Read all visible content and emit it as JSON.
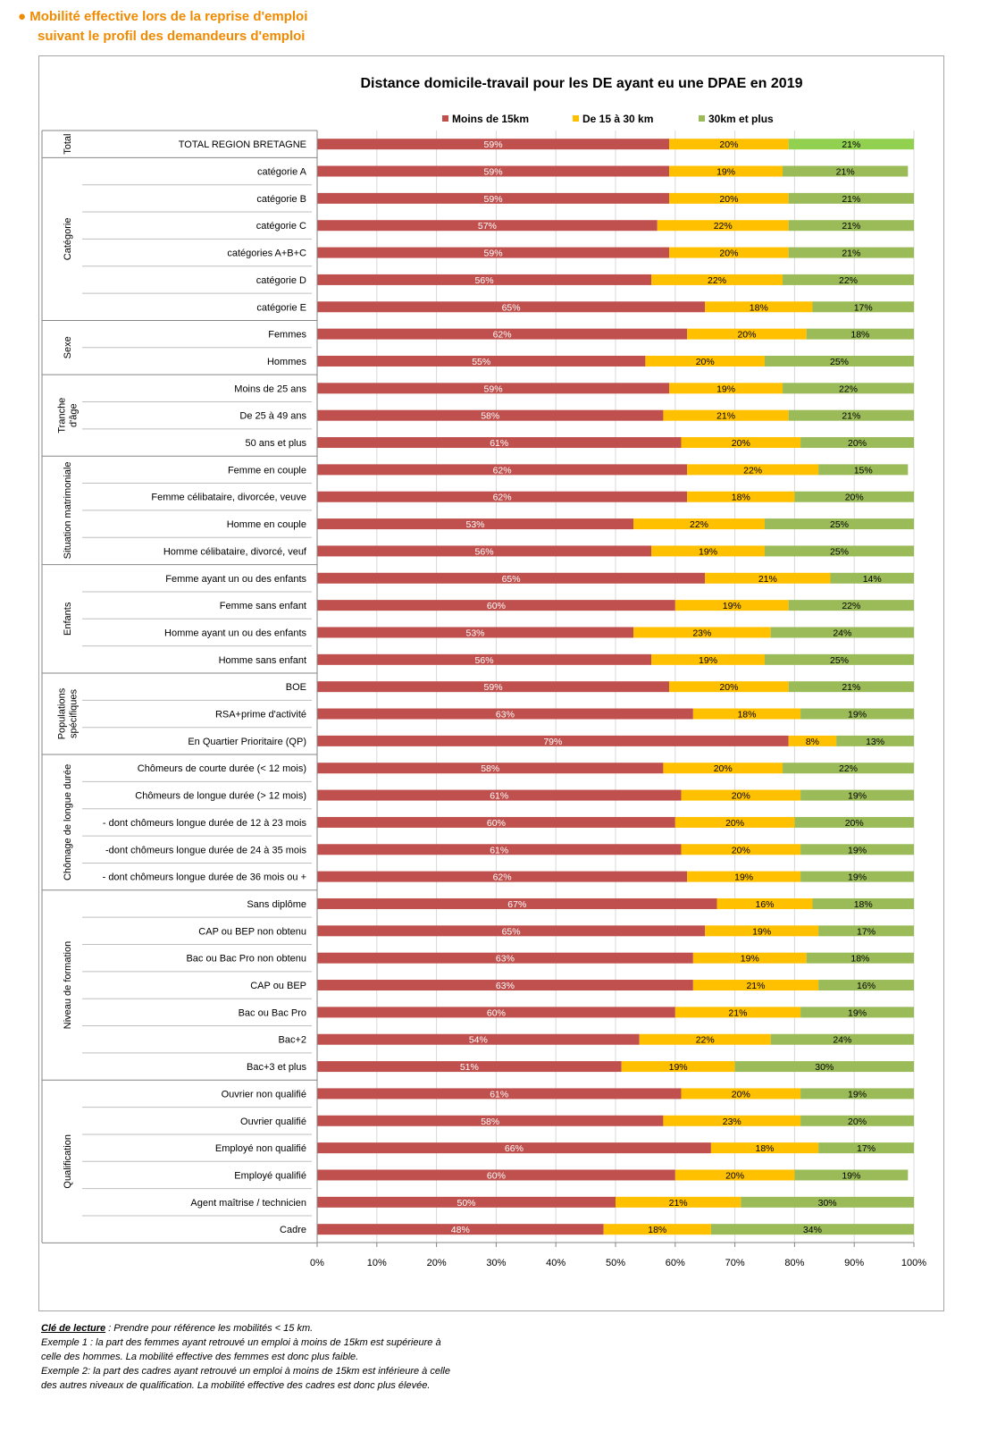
{
  "heading": {
    "line1": "● Mobilité effective lors de la reprise d'emploi",
    "line2": "suivant le profil des demandeurs d'emploi"
  },
  "chart_data": {
    "type": "bar",
    "orientation": "horizontal-stacked-100",
    "title": "Distance domicile-travail pour les DE ayant eu une DPAE en 2019",
    "legend_position": "top",
    "xlim": [
      0,
      100
    ],
    "x_ticks": [
      "0%",
      "10%",
      "20%",
      "30%",
      "40%",
      "50%",
      "60%",
      "70%",
      "80%",
      "90%",
      "100%"
    ],
    "grid": true,
    "series": [
      {
        "name": "Moins de 15km",
        "color": "#c0504d"
      },
      {
        "name": "De 15 à 30 km",
        "color": "#ffc000"
      },
      {
        "name": "30km et plus",
        "color": "#9bbb59"
      }
    ],
    "highlight_color": "#92d050",
    "groups": [
      {
        "name": "Total",
        "rows": [
          {
            "label": "TOTAL REGION BRETAGNE",
            "values": [
              59,
              20,
              21
            ],
            "highlight": true
          }
        ]
      },
      {
        "name": "Catégorie",
        "rows": [
          {
            "label": "catégorie A",
            "values": [
              59,
              19,
              21
            ]
          },
          {
            "label": "catégorie B",
            "values": [
              59,
              20,
              21
            ]
          },
          {
            "label": "catégorie C",
            "values": [
              57,
              22,
              21
            ]
          },
          {
            "label": "catégories A+B+C",
            "values": [
              59,
              20,
              21
            ]
          },
          {
            "label": "catégorie D",
            "values": [
              56,
              22,
              22
            ]
          },
          {
            "label": "catégorie E",
            "values": [
              65,
              18,
              17
            ]
          }
        ]
      },
      {
        "name": "Sexe",
        "rows": [
          {
            "label": "Femmes",
            "values": [
              62,
              20,
              18
            ]
          },
          {
            "label": "Hommes",
            "values": [
              55,
              20,
              25
            ]
          }
        ]
      },
      {
        "name": "Tranche d'âge",
        "lines": [
          "Tranche",
          "d'âge"
        ],
        "rows": [
          {
            "label": "Moins de 25 ans",
            "values": [
              59,
              19,
              22
            ]
          },
          {
            "label": "De 25 à 49 ans",
            "values": [
              58,
              21,
              21
            ]
          },
          {
            "label": "50 ans et plus",
            "values": [
              61,
              20,
              20
            ]
          }
        ]
      },
      {
        "name": "Situation matrimoniale",
        "rows": [
          {
            "label": "Femme en couple",
            "values": [
              62,
              22,
              15
            ]
          },
          {
            "label": "Femme célibataire, divorcée, veuve",
            "values": [
              62,
              18,
              20
            ]
          },
          {
            "label": "Homme en couple",
            "values": [
              53,
              22,
              25
            ]
          },
          {
            "label": "Homme célibataire, divorcé, veuf",
            "values": [
              56,
              19,
              25
            ]
          }
        ]
      },
      {
        "name": "Enfants",
        "rows": [
          {
            "label": "Femme ayant un ou des enfants",
            "values": [
              65,
              21,
              14
            ]
          },
          {
            "label": "Femme sans enfant",
            "values": [
              60,
              19,
              22
            ]
          },
          {
            "label": "Homme ayant un ou des enfants",
            "values": [
              53,
              23,
              24
            ]
          },
          {
            "label": "Homme sans enfant",
            "values": [
              56,
              19,
              25
            ]
          }
        ]
      },
      {
        "name": "Populations spécifiques",
        "lines": [
          "Populations",
          "spécifiques"
        ],
        "rows": [
          {
            "label": "BOE",
            "values": [
              59,
              20,
              21
            ]
          },
          {
            "label": "RSA+prime d'activité",
            "values": [
              63,
              18,
              19
            ]
          },
          {
            "label": "En Quartier Prioritaire (QP)",
            "values": [
              79,
              8,
              13
            ]
          }
        ]
      },
      {
        "name": "Chômage de longue durée",
        "rows": [
          {
            "label": "Chômeurs de courte durée (< 12 mois)",
            "values": [
              58,
              20,
              22
            ]
          },
          {
            "label": "Chômeurs de longue durée (> 12 mois)",
            "values": [
              61,
              20,
              19
            ]
          },
          {
            "label": "- dont chômeurs longue durée de 12 à 23 mois",
            "values": [
              60,
              20,
              20
            ]
          },
          {
            "label": "-dont chômeurs longue durée de 24 à 35 mois",
            "values": [
              61,
              20,
              19
            ]
          },
          {
            "label": "- dont chômeurs longue durée de 36 mois ou +",
            "values": [
              62,
              19,
              19
            ]
          }
        ]
      },
      {
        "name": "Niveau de formation",
        "rows": [
          {
            "label": "Sans diplôme",
            "values": [
              67,
              16,
              18
            ]
          },
          {
            "label": "CAP ou BEP non obtenu",
            "values": [
              65,
              19,
              17
            ]
          },
          {
            "label": "Bac ou Bac Pro non obtenu",
            "values": [
              63,
              19,
              18
            ]
          },
          {
            "label": "CAP ou BEP",
            "values": [
              63,
              21,
              16
            ]
          },
          {
            "label": "Bac ou Bac Pro",
            "values": [
              60,
              21,
              19
            ]
          },
          {
            "label": "Bac+2",
            "values": [
              54,
              22,
              24
            ]
          },
          {
            "label": "Bac+3 et plus",
            "values": [
              51,
              19,
              30
            ]
          }
        ]
      },
      {
        "name": "Qualification",
        "rows": [
          {
            "label": "Ouvrier non qualifié",
            "values": [
              61,
              20,
              19
            ]
          },
          {
            "label": "Ouvrier qualifié",
            "values": [
              58,
              23,
              20
            ]
          },
          {
            "label": "Employé non qualifié",
            "values": [
              66,
              18,
              17
            ]
          },
          {
            "label": "Employé qualifié",
            "values": [
              60,
              20,
              19
            ]
          },
          {
            "label": "Agent maîtrise / technicien",
            "values": [
              50,
              21,
              30
            ]
          },
          {
            "label": "Cadre",
            "values": [
              48,
              18,
              34
            ]
          }
        ]
      }
    ]
  },
  "footnote": {
    "key_label": "Clé de lecture",
    "key_text": " : Prendre pour référence les mobilités < 15 km.",
    "example1": "Exemple 1 : la part des femmes ayant retrouvé un emploi à moins de 15km est supérieure à celle des hommes. La mobilité effective des femmes est donc plus faible.",
    "example2": "Exemple  2:  la part des cadres ayant retrouvé un emploi à moins de 15km est inférieure à celle des autres niveaux de qualification. La mobilité effective des cadres est donc plus élevée."
  }
}
